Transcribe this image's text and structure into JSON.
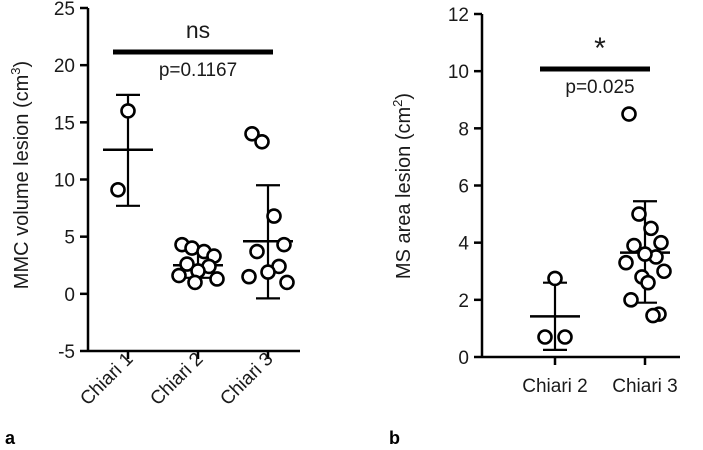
{
  "chart_data": [
    {
      "type": "scatter",
      "panel_label": "a",
      "ylabel_main": "MMC volume lesion (cm",
      "ylabel_sup": "3",
      "ylabel_close": ")",
      "ylim": [
        -5,
        25
      ],
      "yticks": [
        "-5",
        "0",
        "5",
        "10",
        "15",
        "20",
        "25"
      ],
      "categories": [
        "Chiari 1",
        "Chiari 2",
        "Chiari 3"
      ],
      "groups": [
        {
          "category": "Chiari 1",
          "points": [
            16.0,
            9.1
          ],
          "mean": 12.6,
          "sd_low": 7.7,
          "sd_high": 17.4
        },
        {
          "category": "Chiari 2",
          "points": [
            4.3,
            4.0,
            3.7,
            3.3,
            2.6,
            2.4,
            2.0,
            1.6,
            1.3,
            1.0
          ],
          "mean": 2.5,
          "sd_low": 1.4,
          "sd_high": 3.7
        },
        {
          "category": "Chiari 3",
          "points": [
            14.0,
            13.3,
            6.8,
            4.3,
            3.7,
            2.4,
            1.9,
            1.5,
            1.0
          ],
          "mean": 4.6,
          "sd_low": -0.4,
          "sd_high": 9.5
        }
      ],
      "comparison": {
        "from": 0,
        "to": 2,
        "label": "ns",
        "p_text": "p=0.1167"
      }
    },
    {
      "type": "scatter",
      "panel_label": "b",
      "ylabel_main": "MS area lesion (cm",
      "ylabel_sup": "2",
      "ylabel_close": ")",
      "ylim": [
        0,
        12
      ],
      "yticks": [
        "0",
        "2",
        "4",
        "6",
        "8",
        "10",
        "12"
      ],
      "categories": [
        "Chiari 2",
        "Chiari 3"
      ],
      "groups": [
        {
          "category": "Chiari 2",
          "points": [
            2.75,
            0.7,
            0.7
          ],
          "mean": 1.42,
          "sd_low": 0.25,
          "sd_high": 2.6
        },
        {
          "category": "Chiari 3",
          "points": [
            8.5,
            5.0,
            4.5,
            4.0,
            3.9,
            3.5,
            3.6,
            3.3,
            3.0,
            2.8,
            2.6,
            2.0,
            1.5,
            1.45
          ],
          "mean": 3.65,
          "sd_low": 1.9,
          "sd_high": 5.45
        }
      ],
      "comparison": {
        "from": 0,
        "to": 1,
        "label": "*",
        "p_text": "p=0.025"
      }
    }
  ]
}
